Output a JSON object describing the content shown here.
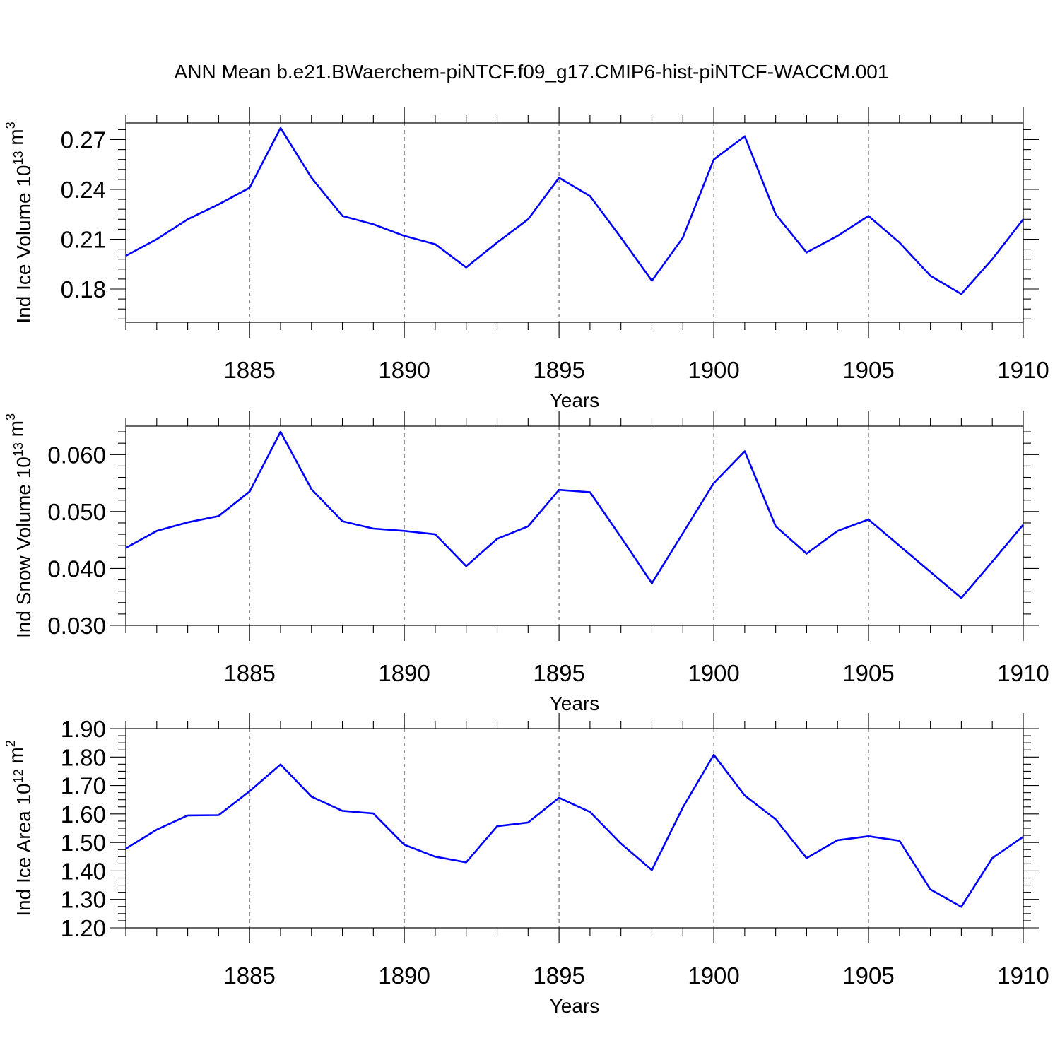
{
  "title": "ANN Mean b.e21.BWaerchem-piNTCF.f09_g17.CMIP6-hist-piNTCF-WACCM.001",
  "colors": {
    "series": "#0000ff",
    "axes": "#000000",
    "grid": "#555555"
  },
  "chart_data": [
    {
      "type": "line",
      "xlabel": "Years",
      "ylabel_main": "Ind Ice Volume 10",
      "ylabel_exp": "13",
      "ylabel_unit": " m",
      "ylabel_unit_exp": "3",
      "xlim": [
        1881,
        1910
      ],
      "ylim": [
        0.16,
        0.28
      ],
      "xticks": [
        1885,
        1890,
        1895,
        1900,
        1905,
        1910
      ],
      "xtick_labels": [
        "1885",
        "1890",
        "1895",
        "1900",
        "1905",
        "1910"
      ],
      "yticks": [
        0.18,
        0.21,
        0.24,
        0.27
      ],
      "ytick_labels": [
        "0.18",
        "0.21",
        "0.24",
        "0.27"
      ],
      "x": [
        1881,
        1882,
        1883,
        1884,
        1885,
        1886,
        1887,
        1888,
        1889,
        1890,
        1891,
        1892,
        1893,
        1894,
        1895,
        1896,
        1897,
        1898,
        1899,
        1900,
        1901,
        1902,
        1903,
        1904,
        1905,
        1906,
        1907,
        1908,
        1909,
        1910
      ],
      "series": [
        {
          "values": [
            0.2,
            0.21,
            0.222,
            0.231,
            0.241,
            0.277,
            0.247,
            0.224,
            0.219,
            0.212,
            0.207,
            0.193,
            0.208,
            0.222,
            0.247,
            0.236,
            0.211,
            0.185,
            0.211,
            0.258,
            0.272,
            0.225,
            0.202,
            0.212,
            0.224,
            0.208,
            0.188,
            0.177,
            0.198,
            0.222
          ]
        }
      ]
    },
    {
      "type": "line",
      "xlabel": "Years",
      "ylabel_main": "Ind Snow Volume 10",
      "ylabel_exp": "13",
      "ylabel_unit": " m",
      "ylabel_unit_exp": "3",
      "xlim": [
        1881,
        1910
      ],
      "ylim": [
        0.03,
        0.065
      ],
      "xticks": [
        1885,
        1890,
        1895,
        1900,
        1905,
        1910
      ],
      "xtick_labels": [
        "1885",
        "1890",
        "1895",
        "1900",
        "1905",
        "1910"
      ],
      "yticks": [
        0.03,
        0.04,
        0.05,
        0.06
      ],
      "ytick_labels": [
        "0.030",
        "0.040",
        "0.050",
        "0.060"
      ],
      "x": [
        1881,
        1882,
        1883,
        1884,
        1885,
        1886,
        1887,
        1888,
        1889,
        1890,
        1891,
        1892,
        1893,
        1894,
        1895,
        1896,
        1897,
        1898,
        1899,
        1900,
        1901,
        1902,
        1903,
        1904,
        1905,
        1906,
        1907,
        1908,
        1909,
        1910
      ],
      "series": [
        {
          "values": [
            0.0436,
            0.0466,
            0.0481,
            0.0492,
            0.0535,
            0.064,
            0.0539,
            0.0483,
            0.047,
            0.0466,
            0.046,
            0.0404,
            0.0452,
            0.0474,
            0.0538,
            0.0534,
            0.0455,
            0.0374,
            0.0462,
            0.055,
            0.0606,
            0.0474,
            0.0426,
            0.0466,
            0.0486,
            0.044,
            0.0394,
            0.0348,
            0.0412,
            0.0477
          ]
        }
      ]
    },
    {
      "type": "line",
      "xlabel": "Years",
      "ylabel_main": "Ind Ice Area 10",
      "ylabel_exp": "12",
      "ylabel_unit": " m",
      "ylabel_unit_exp": "2",
      "xlim": [
        1881,
        1910
      ],
      "ylim": [
        1.2,
        1.9
      ],
      "xticks": [
        1885,
        1890,
        1895,
        1900,
        1905,
        1910
      ],
      "xtick_labels": [
        "1885",
        "1890",
        "1895",
        "1900",
        "1905",
        "1910"
      ],
      "yticks": [
        1.2,
        1.3,
        1.4,
        1.5,
        1.6,
        1.7,
        1.8,
        1.9
      ],
      "ytick_labels": [
        "1.20",
        "1.30",
        "1.40",
        "1.50",
        "1.60",
        "1.70",
        "1.80",
        "1.90"
      ],
      "x": [
        1881,
        1882,
        1883,
        1884,
        1885,
        1886,
        1887,
        1888,
        1889,
        1890,
        1891,
        1892,
        1893,
        1894,
        1895,
        1896,
        1897,
        1898,
        1899,
        1900,
        1901,
        1902,
        1903,
        1904,
        1905,
        1906,
        1907,
        1908,
        1909,
        1910
      ],
      "series": [
        {
          "values": [
            1.478,
            1.545,
            1.595,
            1.596,
            1.68,
            1.774,
            1.661,
            1.611,
            1.602,
            1.492,
            1.45,
            1.43,
            1.557,
            1.57,
            1.657,
            1.607,
            1.496,
            1.403,
            1.623,
            1.808,
            1.665,
            1.581,
            1.445,
            1.508,
            1.522,
            1.506,
            1.335,
            1.274,
            1.445,
            1.52
          ]
        }
      ]
    }
  ]
}
